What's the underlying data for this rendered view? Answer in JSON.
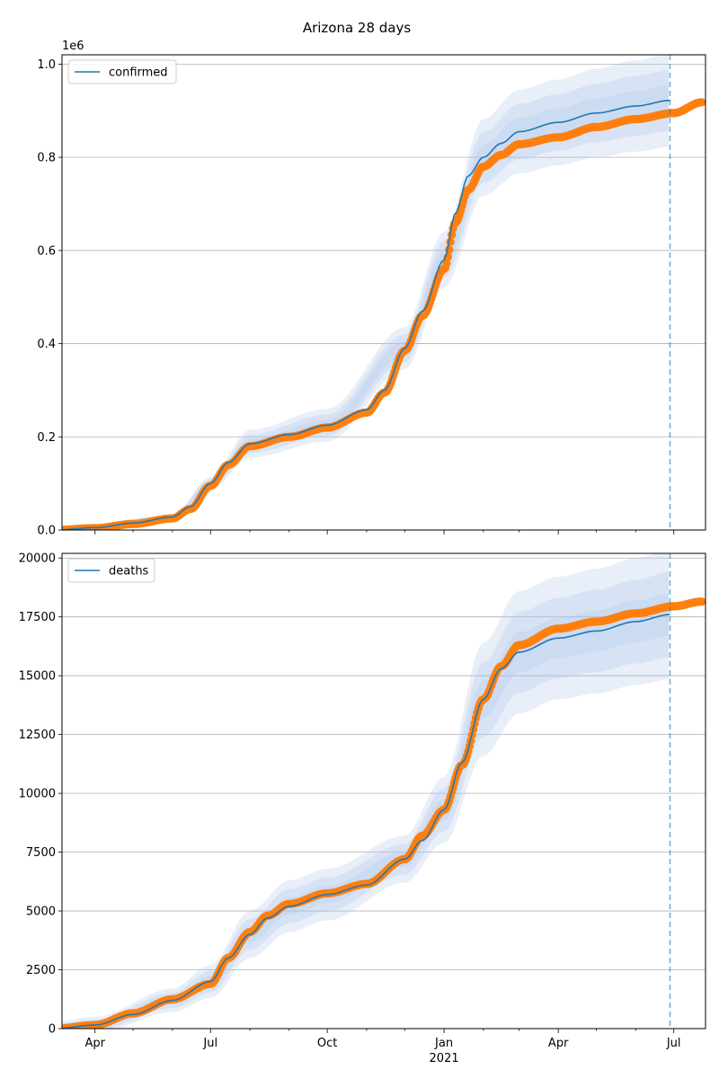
{
  "figure_title": "Arizona 28 days",
  "colors": {
    "model": "#1f77b4",
    "observed": "#ff7f0e",
    "band": "#aec7e8",
    "grid": "#b0b0b0",
    "vline": "#1f77b4"
  },
  "chart_data": [
    {
      "type": "line",
      "legend": "confirmed",
      "legend_location": "upper-left",
      "ylim": [
        0,
        1020000
      ],
      "y_ticks": [
        0,
        200000,
        400000,
        600000,
        800000,
        1000000
      ],
      "y_tick_labels": [
        "0.0",
        "0.2",
        "0.4",
        "0.6",
        "0.8",
        "1.0"
      ],
      "y_offset_label": "1e6",
      "grid": "horizontal",
      "x_tick_labels": [],
      "series": [
        {
          "name": "confirmed",
          "kind": "line",
          "x": [
            "2020-03-01",
            "2020-04-01",
            "2020-05-01",
            "2020-06-01",
            "2020-06-15",
            "2020-07-01",
            "2020-07-15",
            "2020-08-01",
            "2020-09-01",
            "2020-10-01",
            "2020-11-01",
            "2020-11-15",
            "2020-12-01",
            "2020-12-15",
            "2021-01-01",
            "2021-01-10",
            "2021-01-20",
            "2021-02-01",
            "2021-02-15",
            "2021-03-01",
            "2021-04-01",
            "2021-05-01",
            "2021-06-01",
            "2021-06-28"
          ],
          "values": [
            0,
            5000,
            15000,
            28000,
            50000,
            100000,
            145000,
            185000,
            205000,
            225000,
            258000,
            300000,
            390000,
            470000,
            580000,
            680000,
            760000,
            800000,
            830000,
            855000,
            875000,
            895000,
            910000,
            922000
          ]
        },
        {
          "name": "confirmed observed",
          "kind": "scatter",
          "x": [
            "2020-03-01",
            "2020-04-01",
            "2020-05-01",
            "2020-06-01",
            "2020-06-15",
            "2020-07-01",
            "2020-07-15",
            "2020-08-01",
            "2020-09-01",
            "2020-10-01",
            "2020-11-01",
            "2020-11-15",
            "2020-12-01",
            "2020-12-15",
            "2021-01-01",
            "2021-01-10",
            "2021-01-20",
            "2021-02-01",
            "2021-02-15",
            "2021-03-01",
            "2021-04-01",
            "2021-05-01",
            "2021-06-01",
            "2021-07-01",
            "2021-07-23"
          ],
          "values": [
            0,
            4000,
            13000,
            25000,
            45000,
            95000,
            140000,
            180000,
            200000,
            220000,
            252000,
            295000,
            385000,
            460000,
            560000,
            660000,
            730000,
            780000,
            805000,
            828000,
            843000,
            865000,
            882000,
            895000,
            918000
          ]
        }
      ],
      "band": {
        "x": [
          "2020-03-01",
          "2020-06-01",
          "2020-07-01",
          "2020-08-01",
          "2020-10-01",
          "2020-12-01",
          "2021-01-01",
          "2021-02-01",
          "2021-03-01",
          "2021-04-01",
          "2021-05-01",
          "2021-06-01",
          "2021-06-28"
        ],
        "center": [
          0,
          28000,
          100000,
          185000,
          225000,
          390000,
          580000,
          800000,
          855000,
          875000,
          895000,
          910000,
          922000
        ],
        "spread": [
          0,
          4000,
          14000,
          30000,
          35000,
          45000,
          60000,
          82000,
          90000,
          92000,
          95000,
          98000,
          100000
        ]
      }
    },
    {
      "type": "line",
      "legend": "deaths",
      "legend_location": "upper-left",
      "ylim": [
        0,
        20200
      ],
      "y_ticks": [
        0,
        2500,
        5000,
        7500,
        10000,
        12500,
        15000,
        17500,
        20000
      ],
      "y_tick_labels": [
        "0",
        "2500",
        "5000",
        "7500",
        "10000",
        "12500",
        "15000",
        "17500",
        "20000"
      ],
      "grid": "horizontal",
      "x_tick_labels": [
        "Apr",
        "Jul",
        "Oct",
        "Jan",
        "Apr",
        "Jul"
      ],
      "x_secondary_label": "2021",
      "series": [
        {
          "name": "deaths",
          "kind": "line",
          "x": [
            "2020-03-01",
            "2020-04-01",
            "2020-05-01",
            "2020-06-01",
            "2020-07-01",
            "2020-07-15",
            "2020-08-01",
            "2020-08-15",
            "2020-09-01",
            "2020-10-01",
            "2020-11-01",
            "2020-12-01",
            "2020-12-15",
            "2021-01-01",
            "2021-01-15",
            "2021-02-01",
            "2021-02-15",
            "2021-03-01",
            "2021-04-01",
            "2021-05-01",
            "2021-06-01",
            "2021-06-28"
          ],
          "values": [
            0,
            150,
            600,
            1200,
            2000,
            3000,
            4000,
            4700,
            5200,
            5700,
            6100,
            7200,
            8000,
            9300,
            11300,
            14000,
            15300,
            16000,
            16600,
            16900,
            17300,
            17600
          ]
        },
        {
          "name": "deaths observed",
          "kind": "scatter",
          "x": [
            "2020-03-01",
            "2020-04-01",
            "2020-05-01",
            "2020-06-01",
            "2020-07-01",
            "2020-07-15",
            "2020-08-01",
            "2020-08-15",
            "2020-09-01",
            "2020-10-01",
            "2020-11-01",
            "2020-12-01",
            "2020-12-15",
            "2021-01-01",
            "2021-01-15",
            "2021-02-01",
            "2021-02-15",
            "2021-03-01",
            "2021-04-01",
            "2021-05-01",
            "2021-06-01",
            "2021-07-01",
            "2021-07-23"
          ],
          "values": [
            0,
            150,
            650,
            1250,
            1900,
            3000,
            4100,
            4800,
            5300,
            5750,
            6150,
            7200,
            8200,
            9300,
            11200,
            14000,
            15400,
            16300,
            17000,
            17300,
            17650,
            17950,
            18150
          ]
        }
      ],
      "band": {
        "x": [
          "2020-03-01",
          "2020-04-01",
          "2020-06-01",
          "2020-07-01",
          "2020-08-01",
          "2020-09-01",
          "2020-10-01",
          "2020-12-01",
          "2021-01-01",
          "2021-02-01",
          "2021-03-01",
          "2021-04-01",
          "2021-05-01",
          "2021-06-01",
          "2021-06-28"
        ],
        "center": [
          0,
          150,
          1200,
          2000,
          4000,
          5200,
          5700,
          7200,
          9300,
          14000,
          16000,
          16600,
          16900,
          17300,
          17600
        ],
        "spread": [
          300,
          350,
          500,
          700,
          1000,
          1100,
          1100,
          1000,
          1400,
          2400,
          2600,
          2600,
          2650,
          2700,
          2750
        ]
      }
    }
  ]
}
